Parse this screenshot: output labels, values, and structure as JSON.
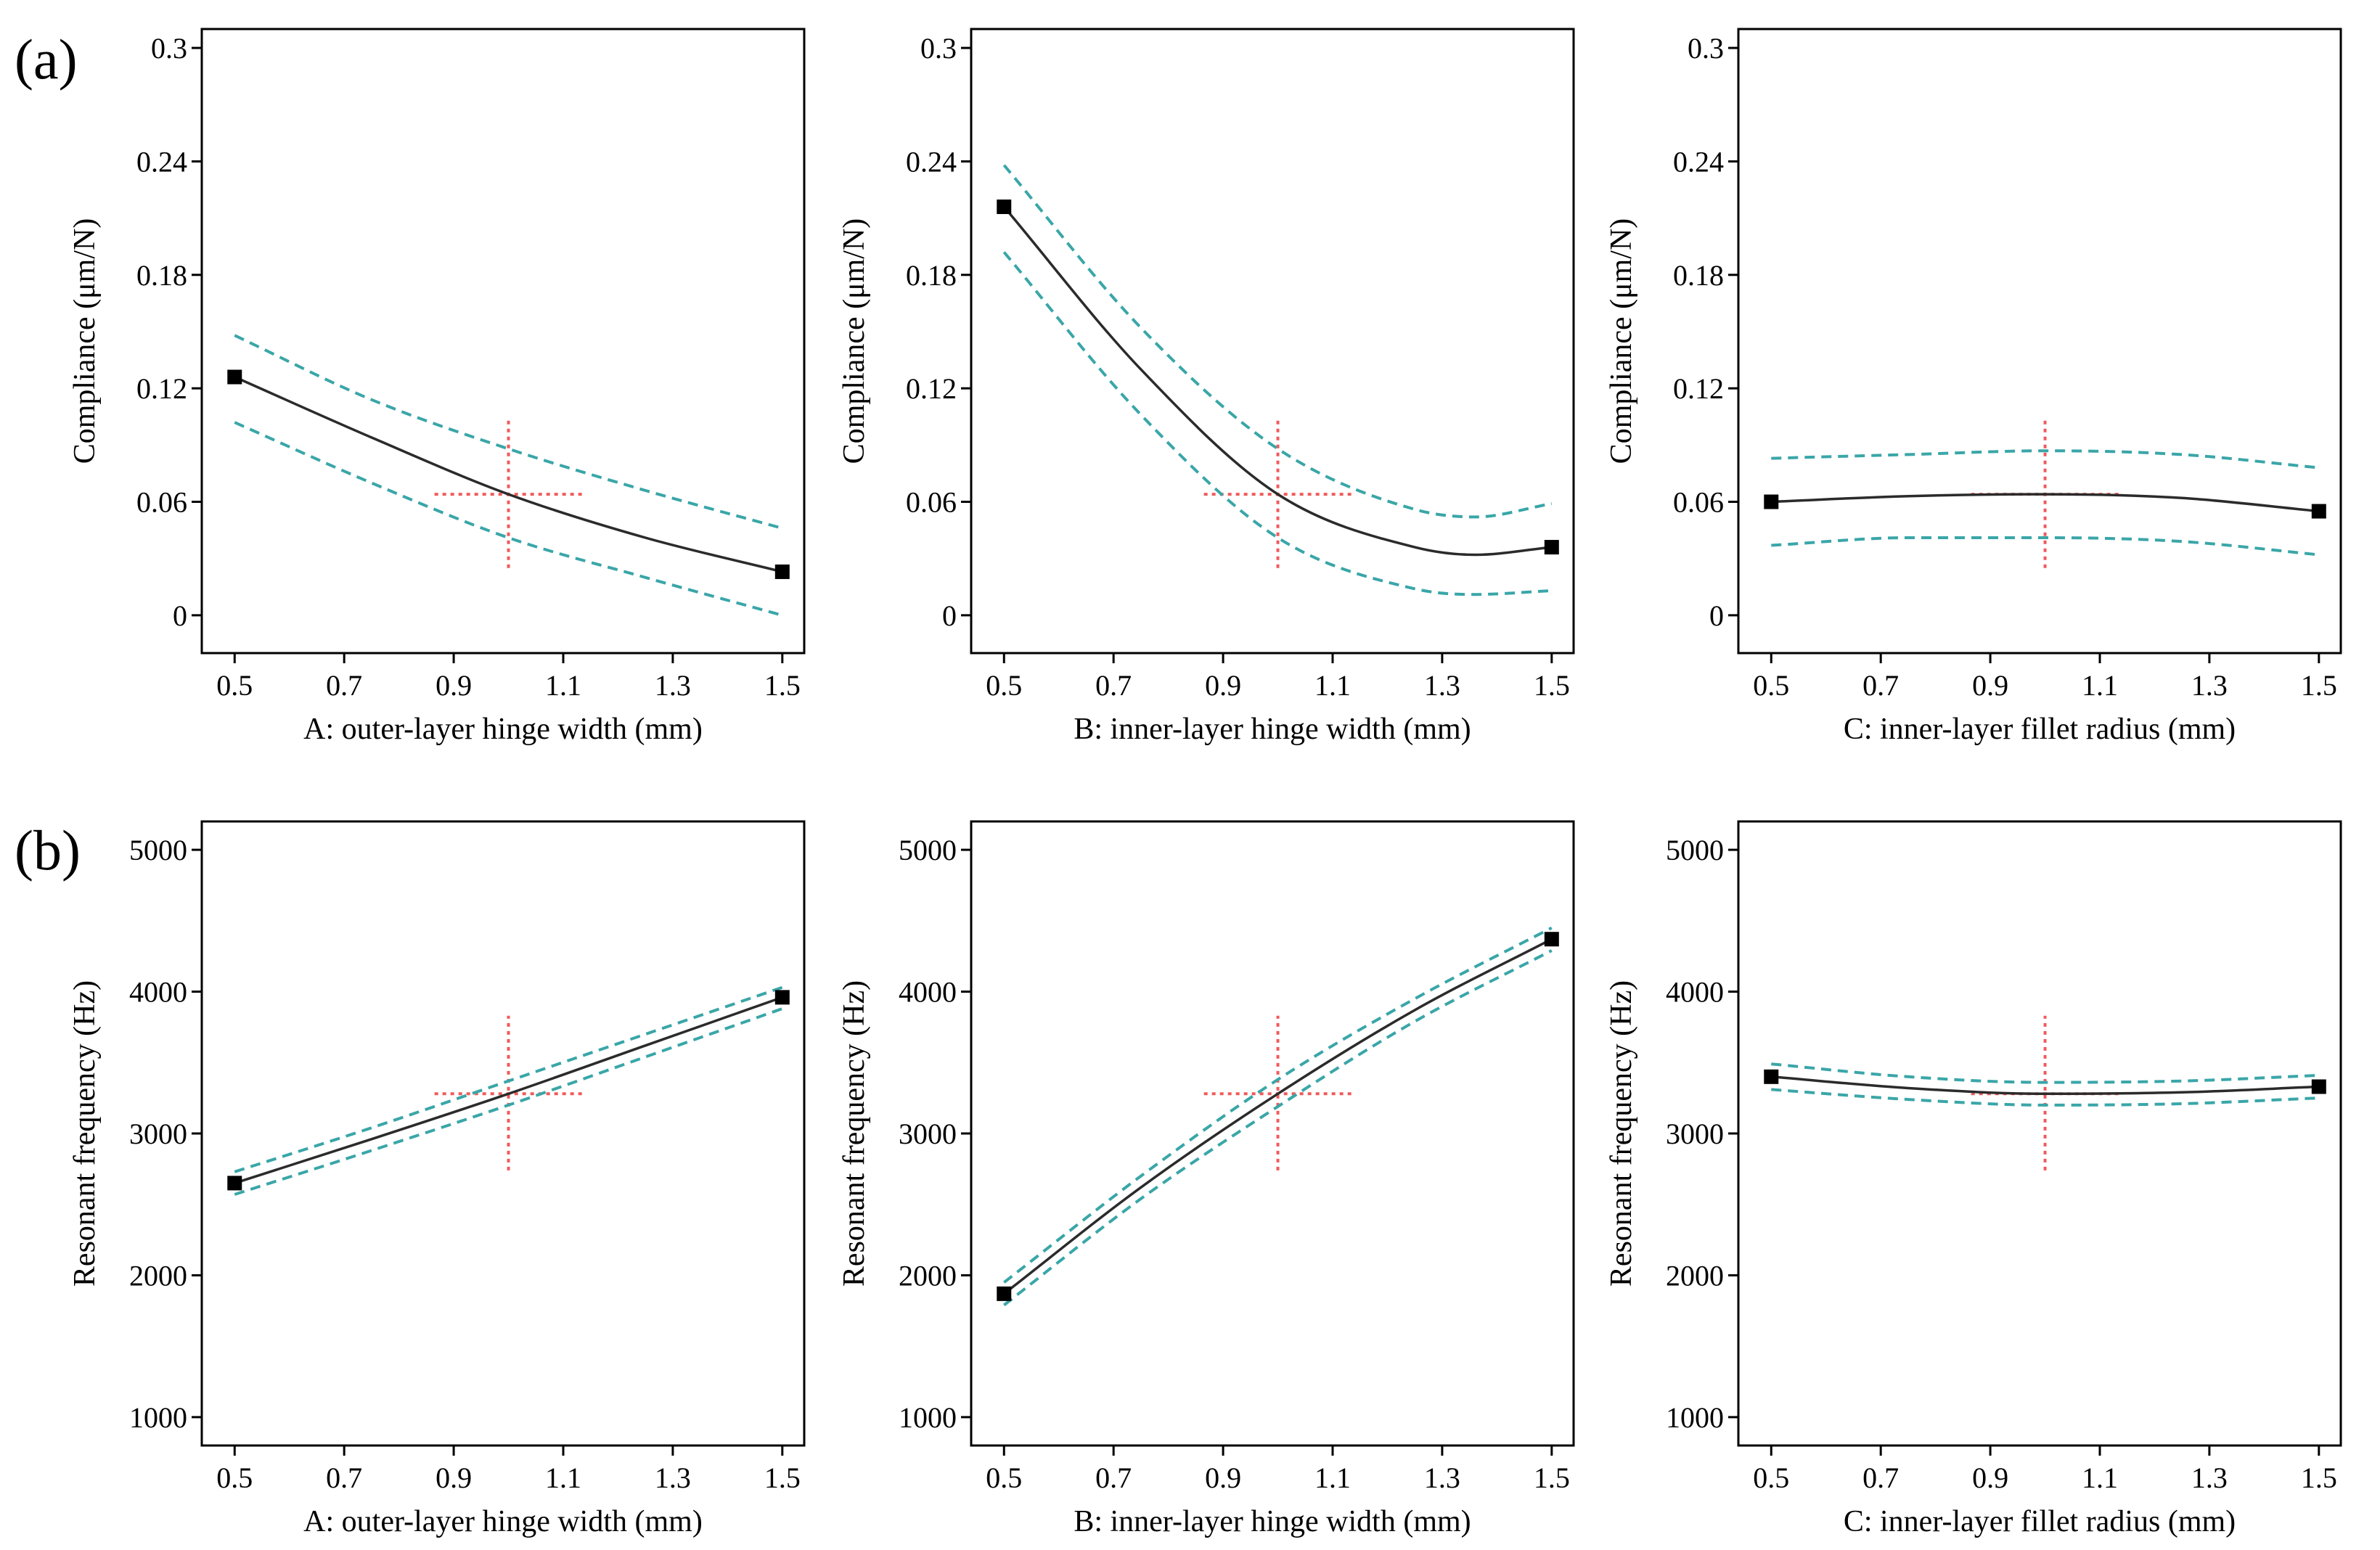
{
  "figure": {
    "panel_labels": [
      "(a)",
      "(b)"
    ]
  },
  "colors": {
    "fit_line": "#2b2b2b",
    "confidence_band": "#3aa6a8",
    "design_point_cross": "#f05a5a",
    "marker": "#000000",
    "frame": "#000000"
  },
  "chart_data": [
    {
      "type": "line",
      "panel": "(a)",
      "xlabel": "A: outer-layer hinge width (mm)",
      "ylabel": "Compliance (μm/N)",
      "xlim": [
        0.44,
        1.54
      ],
      "ylim": [
        -0.02,
        0.31
      ],
      "xticks": [
        0.5,
        0.7,
        0.9,
        1.1,
        1.3,
        1.5
      ],
      "xtick_labels": [
        "0.5",
        "0.7",
        "0.9",
        "1.1",
        "1.3",
        "1.5"
      ],
      "yticks": [
        0,
        0.06,
        0.12,
        0.18,
        0.24,
        0.3
      ],
      "ytick_labels": [
        "0",
        "0.06",
        "0.12",
        "0.18",
        "0.24",
        "0.3"
      ],
      "series": [
        {
          "name": "predicted",
          "x": [
            0.5,
            0.75,
            1.0,
            1.25,
            1.5
          ],
          "values": [
            0.126,
            0.094,
            0.064,
            0.041,
            0.023
          ]
        },
        {
          "name": "upper_95",
          "x": [
            0.5,
            0.75,
            1.0,
            1.25,
            1.5
          ],
          "values": [
            0.148,
            0.114,
            0.088,
            0.066,
            0.046
          ]
        },
        {
          "name": "lower_95",
          "x": [
            0.5,
            0.75,
            1.0,
            1.25,
            1.5
          ],
          "values": [
            0.102,
            0.07,
            0.041,
            0.02,
            0.0
          ]
        }
      ],
      "markers": [
        {
          "x": 0.5,
          "y": 0.126
        },
        {
          "x": 1.5,
          "y": 0.023
        }
      ],
      "crosshair": {
        "x": 1.0,
        "y": 0.064,
        "x_range": [
          0.865,
          1.135
        ],
        "y_range": [
          0.025,
          0.105
        ]
      }
    },
    {
      "type": "line",
      "panel": "(a)",
      "xlabel": "B: inner-layer hinge width (mm)",
      "ylabel": "Compliance (μm/N)",
      "xlim": [
        0.44,
        1.54
      ],
      "ylim": [
        -0.02,
        0.31
      ],
      "xticks": [
        0.5,
        0.7,
        0.9,
        1.1,
        1.3,
        1.5
      ],
      "xtick_labels": [
        "0.5",
        "0.7",
        "0.9",
        "1.1",
        "1.3",
        "1.5"
      ],
      "yticks": [
        0,
        0.06,
        0.12,
        0.18,
        0.24,
        0.3
      ],
      "ytick_labels": [
        "0",
        "0.06",
        "0.12",
        "0.18",
        "0.24",
        "0.3"
      ],
      "series": [
        {
          "name": "predicted",
          "x": [
            0.5,
            0.75,
            1.0,
            1.25,
            1.36,
            1.5
          ],
          "values": [
            0.216,
            0.13,
            0.064,
            0.036,
            0.032,
            0.036
          ]
        },
        {
          "name": "upper_95",
          "x": [
            0.5,
            0.75,
            1.0,
            1.25,
            1.36,
            1.5
          ],
          "values": [
            0.238,
            0.152,
            0.088,
            0.056,
            0.052,
            0.059
          ]
        },
        {
          "name": "lower_95",
          "x": [
            0.5,
            0.75,
            1.0,
            1.25,
            1.36,
            1.5
          ],
          "values": [
            0.192,
            0.106,
            0.041,
            0.014,
            0.011,
            0.013
          ]
        }
      ],
      "markers": [
        {
          "x": 0.5,
          "y": 0.216
        },
        {
          "x": 1.5,
          "y": 0.036
        }
      ],
      "crosshair": {
        "x": 1.0,
        "y": 0.064,
        "x_range": [
          0.865,
          1.135
        ],
        "y_range": [
          0.025,
          0.105
        ]
      }
    },
    {
      "type": "line",
      "panel": "(a)",
      "xlabel": "C: inner-layer fillet radius (mm)",
      "ylabel": "Compliance (μm/N)",
      "xlim": [
        0.44,
        1.54
      ],
      "ylim": [
        -0.02,
        0.31
      ],
      "xticks": [
        0.5,
        0.7,
        0.9,
        1.1,
        1.3,
        1.5
      ],
      "xtick_labels": [
        "0.5",
        "0.7",
        "0.9",
        "1.1",
        "1.3",
        "1.5"
      ],
      "yticks": [
        0,
        0.06,
        0.12,
        0.18,
        0.24,
        0.3
      ],
      "ytick_labels": [
        "0",
        "0.06",
        "0.12",
        "0.18",
        "0.24",
        "0.3"
      ],
      "series": [
        {
          "name": "predicted",
          "x": [
            0.5,
            0.75,
            1.0,
            1.25,
            1.5
          ],
          "values": [
            0.06,
            0.063,
            0.064,
            0.062,
            0.055
          ]
        },
        {
          "name": "upper_95",
          "x": [
            0.5,
            0.75,
            1.0,
            1.25,
            1.5
          ],
          "values": [
            0.083,
            0.085,
            0.087,
            0.085,
            0.078
          ]
        },
        {
          "name": "lower_95",
          "x": [
            0.5,
            0.75,
            1.0,
            1.25,
            1.5
          ],
          "values": [
            0.037,
            0.041,
            0.041,
            0.039,
            0.032
          ]
        }
      ],
      "markers": [
        {
          "x": 0.5,
          "y": 0.06
        },
        {
          "x": 1.5,
          "y": 0.055
        }
      ],
      "crosshair": {
        "x": 1.0,
        "y": 0.064,
        "x_range": [
          0.865,
          1.135
        ],
        "y_range": [
          0.025,
          0.105
        ]
      }
    },
    {
      "type": "line",
      "panel": "(b)",
      "xlabel": "A: outer-layer hinge width (mm)",
      "ylabel": "Resonant frequency (Hz)",
      "xlim": [
        0.44,
        1.54
      ],
      "ylim": [
        800,
        5200
      ],
      "xticks": [
        0.5,
        0.7,
        0.9,
        1.1,
        1.3,
        1.5
      ],
      "xtick_labels": [
        "0.5",
        "0.7",
        "0.9",
        "1.1",
        "1.3",
        "1.5"
      ],
      "yticks": [
        1000,
        2000,
        3000,
        4000,
        5000
      ],
      "ytick_labels": [
        "1000",
        "2000",
        "3000",
        "4000",
        "5000"
      ],
      "series": [
        {
          "name": "predicted",
          "x": [
            0.5,
            0.75,
            1.0,
            1.25,
            1.5
          ],
          "values": [
            2650,
            2960,
            3280,
            3620,
            3960
          ]
        },
        {
          "name": "upper_95",
          "x": [
            0.5,
            0.75,
            1.0,
            1.25,
            1.5
          ],
          "values": [
            2730,
            3040,
            3370,
            3700,
            4030
          ]
        },
        {
          "name": "lower_95",
          "x": [
            0.5,
            0.75,
            1.0,
            1.25,
            1.5
          ],
          "values": [
            2570,
            2880,
            3200,
            3540,
            3880
          ]
        }
      ],
      "markers": [
        {
          "x": 0.5,
          "y": 2650
        },
        {
          "x": 1.5,
          "y": 3960
        }
      ],
      "crosshair": {
        "x": 1.0,
        "y": 3280,
        "x_range": [
          0.865,
          1.135
        ],
        "y_range": [
          2740,
          3830
        ]
      }
    },
    {
      "type": "line",
      "panel": "(b)",
      "xlabel": "B: inner-layer hinge width (mm)",
      "ylabel": "Resonant frequency (Hz)",
      "xlim": [
        0.44,
        1.54
      ],
      "ylim": [
        800,
        5200
      ],
      "xticks": [
        0.5,
        0.7,
        0.9,
        1.1,
        1.3,
        1.5
      ],
      "xtick_labels": [
        "0.5",
        "0.7",
        "0.9",
        "1.1",
        "1.3",
        "1.5"
      ],
      "yticks": [
        1000,
        2000,
        3000,
        4000,
        5000
      ],
      "ytick_labels": [
        "1000",
        "2000",
        "3000",
        "4000",
        "5000"
      ],
      "series": [
        {
          "name": "predicted",
          "x": [
            0.5,
            0.75,
            1.0,
            1.25,
            1.5
          ],
          "values": [
            1870,
            2620,
            3280,
            3870,
            4370
          ]
        },
        {
          "name": "upper_95",
          "x": [
            0.5,
            0.75,
            1.0,
            1.25,
            1.5
          ],
          "values": [
            1950,
            2700,
            3380,
            3950,
            4450
          ]
        },
        {
          "name": "lower_95",
          "x": [
            0.5,
            0.75,
            1.0,
            1.25,
            1.5
          ],
          "values": [
            1790,
            2540,
            3190,
            3790,
            4290
          ]
        }
      ],
      "markers": [
        {
          "x": 0.5,
          "y": 1870
        },
        {
          "x": 1.5,
          "y": 4370
        }
      ],
      "crosshair": {
        "x": 1.0,
        "y": 3280,
        "x_range": [
          0.865,
          1.135
        ],
        "y_range": [
          2740,
          3830
        ]
      }
    },
    {
      "type": "line",
      "panel": "(b)",
      "xlabel": "C: inner-layer fillet radius (mm)",
      "ylabel": "Resonant frequency (Hz)",
      "xlim": [
        0.44,
        1.54
      ],
      "ylim": [
        800,
        5200
      ],
      "xticks": [
        0.5,
        0.7,
        0.9,
        1.1,
        1.3,
        1.5
      ],
      "xtick_labels": [
        "0.5",
        "0.7",
        "0.9",
        "1.1",
        "1.3",
        "1.5"
      ],
      "yticks": [
        1000,
        2000,
        3000,
        4000,
        5000
      ],
      "ytick_labels": [
        "1000",
        "2000",
        "3000",
        "4000",
        "5000"
      ],
      "series": [
        {
          "name": "predicted",
          "x": [
            0.5,
            0.75,
            1.0,
            1.25,
            1.5
          ],
          "values": [
            3400,
            3320,
            3280,
            3290,
            3330
          ]
        },
        {
          "name": "upper_95",
          "x": [
            0.5,
            0.75,
            1.0,
            1.25,
            1.5
          ],
          "values": [
            3490,
            3400,
            3360,
            3370,
            3410
          ]
        },
        {
          "name": "lower_95",
          "x": [
            0.5,
            0.75,
            1.0,
            1.25,
            1.5
          ],
          "values": [
            3310,
            3240,
            3200,
            3210,
            3250
          ]
        }
      ],
      "markers": [
        {
          "x": 0.5,
          "y": 3400
        },
        {
          "x": 1.5,
          "y": 3330
        }
      ],
      "crosshair": {
        "x": 1.0,
        "y": 3280,
        "x_range": [
          0.865,
          1.135
        ],
        "y_range": [
          2740,
          3830
        ]
      }
    }
  ]
}
